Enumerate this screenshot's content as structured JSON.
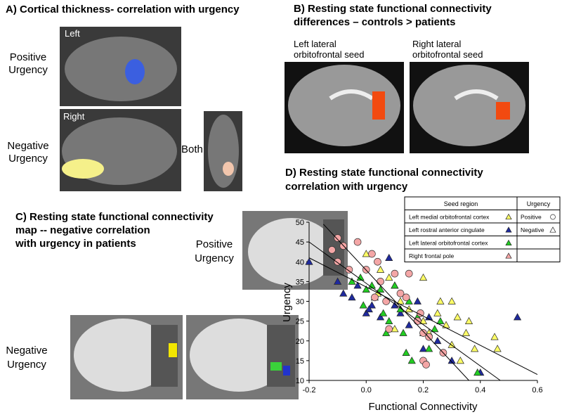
{
  "panels": {
    "a": {
      "title": [
        "A)  Cortical thickness- correlation with urgency"
      ],
      "image_left": [
        "Left"
      ],
      "image_right": [
        "Right"
      ],
      "positive": [
        "Positive",
        "Urgency"
      ],
      "negative": [
        "Negative",
        "Urgency"
      ],
      "both": [
        "Both"
      ]
    },
    "b": {
      "title": [
        "B)  Resting state  functional connectivity",
        "differences – controls > patients"
      ],
      "left_seed": [
        "Left lateral",
        "orbitofrontal seed"
      ],
      "right_seed": [
        "Right lateral",
        "orbitofrontal seed"
      ]
    },
    "c": {
      "title": [
        "C)  Resting state functional connectivity",
        "map  -- negative correlation",
        "with urgency in patients"
      ],
      "positive": [
        "Positive",
        "Urgency"
      ],
      "negative": [
        "Negative",
        "Urgency"
      ]
    }
  },
  "chart_data": {
    "type": "scatter",
    "title": [
      "D)    Resting state functional connectivity",
      "correlation with urgency"
    ],
    "x_label": "Functional Connectivity",
    "y_label": "Urgency",
    "xlim": [
      -0.2,
      0.6
    ],
    "xticks": [
      -0.2,
      {
        "value": 0,
        "label": "0.0"
      },
      0.2,
      0.4,
      0.6
    ],
    "ylim": [
      10,
      50
    ],
    "yticks": [
      10,
      15,
      20,
      25,
      30,
      35,
      40,
      45,
      50
    ],
    "legend_headers": [
      "Seed region",
      "Urgency"
    ],
    "urgency_legend": [
      {
        "label": "Positive",
        "marker": "circle"
      },
      {
        "label": "Negative",
        "marker": "triangle"
      }
    ],
    "series": [
      {
        "name": "Left  medial orbitofrontal cortex",
        "color": "#ffff66",
        "marker": "triangle",
        "x": [
          0.0,
          0.05,
          0.08,
          0.1,
          0.12,
          0.15,
          0.18,
          0.2,
          0.22,
          0.25,
          0.28,
          0.3,
          0.32,
          0.35,
          0.38,
          0.45,
          0.46,
          0.2,
          0.26,
          0.33,
          0.1,
          0.04,
          0.3,
          0.36
        ],
        "values": [
          42,
          38,
          36,
          34,
          30,
          28,
          26,
          25,
          22,
          27,
          24,
          19,
          26,
          22,
          18,
          21,
          18,
          36,
          30,
          15,
          23,
          32,
          30,
          25
        ]
      },
      {
        "name": "Left rostral anterior cingulate",
        "color": "#1f2a9e",
        "marker": "triangle",
        "x": [
          -0.2,
          -0.1,
          -0.08,
          -0.05,
          -0.03,
          0.0,
          0.02,
          0.05,
          0.08,
          0.1,
          0.15,
          0.18,
          0.2,
          0.22,
          0.25,
          0.4,
          0.53,
          0.12,
          0.01,
          0.3
        ],
        "values": [
          40,
          35,
          32,
          31,
          34,
          27,
          29,
          26,
          41,
          29,
          24,
          30,
          18,
          26,
          20,
          12,
          26,
          27,
          28,
          15
        ]
      },
      {
        "name": "Left lateral orbitofrontal cortex",
        "color": "#22cc22",
        "marker": "triangle",
        "x": [
          -0.05,
          -0.02,
          0.0,
          0.02,
          0.03,
          0.05,
          0.06,
          0.08,
          0.1,
          0.12,
          0.13,
          0.15,
          0.18,
          0.2,
          0.22,
          0.24,
          0.14,
          0.16,
          0.26,
          0.39,
          -0.01,
          0.07
        ],
        "values": [
          35,
          36,
          33,
          34,
          31,
          33,
          27,
          25,
          34,
          28,
          22,
          30,
          26,
          22,
          18,
          23,
          17,
          15,
          25,
          12,
          29,
          22
        ]
      },
      {
        "name": "Right frontal pole",
        "color": "#f4a6a6",
        "marker": "circle",
        "x": [
          -0.1,
          -0.12,
          -0.08,
          -0.1,
          -0.06,
          -0.03,
          0.02,
          0.03,
          0.05,
          0.07,
          0.08,
          0.1,
          0.12,
          0.14,
          0.15,
          0.19,
          0.2,
          0.2,
          0.22,
          0.21,
          0.27,
          0.18,
          0.0,
          0.04
        ],
        "values": [
          46,
          43,
          44,
          40,
          38,
          45,
          42,
          31,
          35,
          30,
          23,
          37,
          32,
          31,
          37,
          27,
          15,
          22,
          21,
          14,
          17,
          25,
          38,
          40
        ]
      }
    ],
    "trend_lines": [
      {
        "x": [
          -0.15,
          0.36
        ],
        "y": [
          49.5,
          10
        ]
      },
      {
        "x": [
          -0.2,
          0.47
        ],
        "y": [
          45,
          10
        ]
      },
      {
        "x": [
          -0.2,
          0.6
        ],
        "y": [
          41,
          11.5
        ]
      }
    ]
  }
}
